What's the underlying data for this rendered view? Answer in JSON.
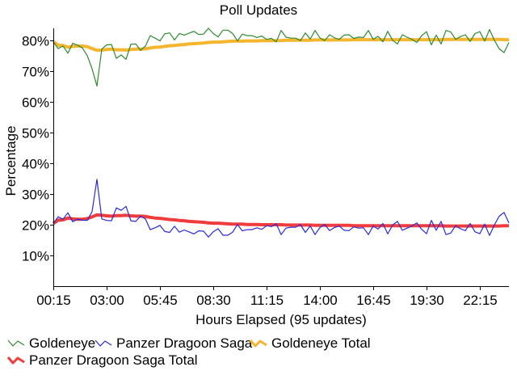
{
  "chart_data": {
    "type": "line",
    "title": "Poll Updates",
    "xlabel": "Hours Elapsed (95 updates)",
    "ylabel": "Percentage",
    "x_tick_labels": [
      "00:15",
      "03:00",
      "05:45",
      "08:30",
      "11:15",
      "14:00",
      "16:45",
      "19:30",
      "22:15"
    ],
    "y_tick_labels": [
      "10%",
      "20%",
      "30%",
      "40%",
      "50%",
      "60%",
      "70%",
      "80%"
    ],
    "y_ticks": [
      10,
      20,
      30,
      40,
      50,
      60,
      70,
      80
    ],
    "ylim": [
      0,
      84
    ],
    "x_start_hours": 0.25,
    "x_step_hours": 0.25,
    "grid": false,
    "legend_placement": "bottom",
    "series": [
      {
        "name": "Goldeneye",
        "color": "#2e8b2e",
        "style": "thin",
        "values": [
          79.6,
          77.4,
          78.2,
          75.9,
          79.1,
          78.5,
          77.6,
          75.1,
          70.8,
          65.2,
          77.2,
          78.6,
          78.7,
          74.2,
          75.3,
          73.9,
          78.8,
          78.9,
          76.8,
          78.2,
          81.6,
          80.8,
          79.9,
          82.2,
          82.5,
          80.2,
          82.3,
          81.8,
          82.4,
          83.0,
          82.0,
          82.1,
          84.0,
          82.3,
          81.2,
          83.4,
          83.4,
          82.3,
          79.9,
          82.1,
          81.6,
          81.6,
          81.0,
          81.5,
          80.4,
          80.7,
          79.6,
          83.3,
          81.1,
          80.8,
          80.8,
          80.0,
          82.5,
          80.5,
          83.3,
          80.9,
          80.0,
          81.9,
          80.9,
          80.4,
          81.8,
          81.9,
          80.7,
          81.1,
          81.0,
          83.3,
          80.4,
          81.4,
          79.6,
          83.0,
          80.1,
          78.9,
          81.9,
          81.1,
          80.4,
          79.4,
          81.6,
          82.9,
          78.6,
          81.8,
          78.9,
          83.3,
          82.8,
          80.4,
          81.3,
          81.9,
          79.7,
          82.3,
          82.9,
          79.8,
          83.6,
          80.1,
          77.3,
          76.1,
          79.4
        ]
      },
      {
        "name": "Panzer Dragoon Saga",
        "color": "#2a2ad8",
        "style": "thin",
        "values": [
          20.4,
          22.6,
          21.8,
          23.9,
          21.0,
          21.8,
          21.5,
          21.4,
          24.3,
          34.8,
          21.9,
          21.4,
          21.3,
          25.5,
          24.7,
          26.0,
          21.3,
          21.1,
          22.8,
          21.9,
          18.4,
          19.0,
          19.8,
          17.8,
          17.5,
          19.5,
          17.6,
          18.3,
          17.7,
          17.0,
          18.0,
          17.9,
          16.0,
          17.7,
          18.7,
          16.6,
          16.6,
          17.6,
          20.1,
          18.0,
          18.4,
          18.4,
          19.0,
          18.5,
          19.7,
          19.4,
          20.3,
          16.8,
          18.9,
          19.2,
          19.2,
          20.0,
          17.5,
          19.6,
          16.8,
          19.1,
          20.1,
          18.1,
          19.1,
          19.6,
          18.2,
          18.1,
          19.3,
          18.9,
          19.0,
          16.8,
          19.6,
          18.6,
          20.4,
          17.0,
          19.9,
          21.1,
          18.2,
          18.9,
          19.6,
          20.6,
          18.5,
          17.1,
          21.4,
          18.2,
          21.1,
          16.8,
          17.3,
          19.7,
          18.7,
          18.1,
          20.4,
          17.7,
          17.1,
          20.2,
          16.5,
          19.9,
          22.8,
          24.0,
          20.6
        ]
      },
      {
        "name": "Goldeneye Total",
        "color": "#f5b52e",
        "style": "thick",
        "values": [
          79.6,
          78.5,
          78.4,
          77.8,
          78.1,
          78.2,
          78.2,
          78.0,
          77.4,
          76.8,
          76.9,
          77.1,
          77.2,
          77.0,
          77.0,
          76.9,
          77.1,
          77.2,
          77.2,
          77.3,
          77.6,
          77.8,
          77.9,
          78.1,
          78.3,
          78.4,
          78.6,
          78.7,
          78.9,
          79.0,
          79.1,
          79.2,
          79.4,
          79.5,
          79.5,
          79.6,
          79.7,
          79.8,
          79.8,
          79.8,
          79.9,
          79.9,
          79.9,
          80.0,
          80.0,
          80.0,
          80.0,
          80.0,
          80.1,
          80.1,
          80.1,
          80.1,
          80.1,
          80.1,
          80.2,
          80.2,
          80.2,
          80.2,
          80.2,
          80.2,
          80.2,
          80.2,
          80.3,
          80.3,
          80.3,
          80.3,
          80.3,
          80.3,
          80.3,
          80.3,
          80.3,
          80.3,
          80.3,
          80.3,
          80.3,
          80.3,
          80.3,
          80.3,
          80.3,
          80.3,
          80.3,
          80.4,
          80.4,
          80.4,
          80.4,
          80.4,
          80.4,
          80.4,
          80.4,
          80.4,
          80.4,
          80.4,
          80.4,
          80.3,
          80.3
        ]
      },
      {
        "name": "Panzer Dragoon Saga Total",
        "color": "#f03c3c",
        "style": "thick",
        "values": [
          20.4,
          21.5,
          21.6,
          22.2,
          21.9,
          21.8,
          21.8,
          22.0,
          22.6,
          23.2,
          23.1,
          22.9,
          22.8,
          23.0,
          23.0,
          23.1,
          22.9,
          22.8,
          22.8,
          22.7,
          22.4,
          22.2,
          22.1,
          21.9,
          21.7,
          21.6,
          21.4,
          21.3,
          21.1,
          21.0,
          20.9,
          20.8,
          20.6,
          20.5,
          20.5,
          20.4,
          20.3,
          20.2,
          20.2,
          20.2,
          20.1,
          20.1,
          20.1,
          20.0,
          20.0,
          20.0,
          20.0,
          20.0,
          19.9,
          19.9,
          19.9,
          19.9,
          19.9,
          19.9,
          19.8,
          19.8,
          19.8,
          19.8,
          19.8,
          19.8,
          19.8,
          19.8,
          19.7,
          19.7,
          19.7,
          19.7,
          19.7,
          19.7,
          19.7,
          19.7,
          19.7,
          19.7,
          19.7,
          19.7,
          19.7,
          19.7,
          19.7,
          19.7,
          19.7,
          19.7,
          19.7,
          19.6,
          19.6,
          19.6,
          19.6,
          19.6,
          19.6,
          19.6,
          19.6,
          19.6,
          19.6,
          19.6,
          19.6,
          19.7,
          19.7
        ]
      }
    ]
  }
}
